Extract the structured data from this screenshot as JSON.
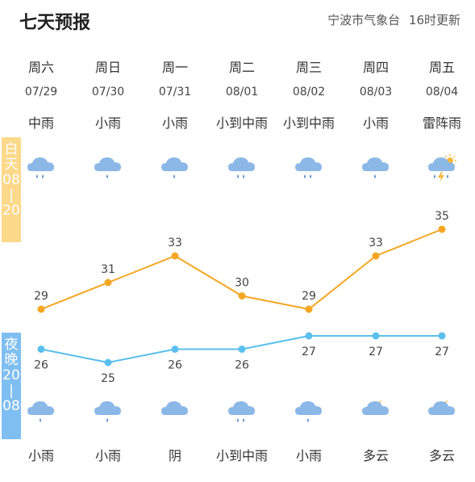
{
  "header": {
    "title": "七天预报",
    "source": "宁波市气象台",
    "update_time": "16时更新"
  },
  "bands": {
    "day": [
      "白",
      "天",
      "08",
      "|",
      "20"
    ],
    "night": [
      "夜",
      "晚",
      "20",
      "|",
      "08"
    ]
  },
  "days": [
    {
      "weekday": "周六",
      "date": "07/29",
      "day_weather": "中雨",
      "day_icon": "moderate-rain-icon",
      "night_weather": "小雨",
      "night_icon": "light-rain-icon"
    },
    {
      "weekday": "周日",
      "date": "07/30",
      "day_weather": "小雨",
      "day_icon": "light-rain-icon",
      "night_weather": "小雨",
      "night_icon": "light-rain-icon"
    },
    {
      "weekday": "周一",
      "date": "07/31",
      "day_weather": "小雨",
      "day_icon": "light-rain-icon",
      "night_weather": "阴",
      "night_icon": "overcast-icon"
    },
    {
      "weekday": "周二",
      "date": "08/01",
      "day_weather": "小到中雨",
      "day_icon": "moderate-rain-icon",
      "night_weather": "小到中雨",
      "night_icon": "moderate-rain-icon"
    },
    {
      "weekday": "周三",
      "date": "08/02",
      "day_weather": "小到中雨",
      "day_icon": "moderate-rain-icon",
      "night_weather": "小雨",
      "night_icon": "light-rain-icon"
    },
    {
      "weekday": "周四",
      "date": "08/03",
      "day_weather": "小雨",
      "day_icon": "light-rain-icon",
      "night_weather": "多云",
      "night_icon": "cloudy-night-icon"
    },
    {
      "weekday": "周五",
      "date": "08/04",
      "day_weather": "雷阵雨",
      "day_icon": "thunderstorm-icon",
      "night_weather": "多云",
      "night_icon": "cloudy-night-icon"
    }
  ],
  "chart_data": {
    "type": "line",
    "categories": [
      "07/29",
      "07/30",
      "07/31",
      "08/01",
      "08/02",
      "08/03",
      "08/04"
    ],
    "series": [
      {
        "values": [
          29,
          31,
          33,
          30,
          29,
          33,
          35
        ],
        "color": "#f5a623"
      },
      {
        "values": [
          26,
          25,
          26,
          26,
          27,
          27,
          27
        ],
        "color": "#5bbfee"
      }
    ],
    "ylim": [
      25,
      35
    ]
  },
  "colors": {
    "day_band": "#fcd88a",
    "night_band": "#7fbef0",
    "cloud": "#8cb8e8",
    "raindrop": "#5a8fd0",
    "sun": "#f5b83d",
    "moon": "#f5c860"
  }
}
